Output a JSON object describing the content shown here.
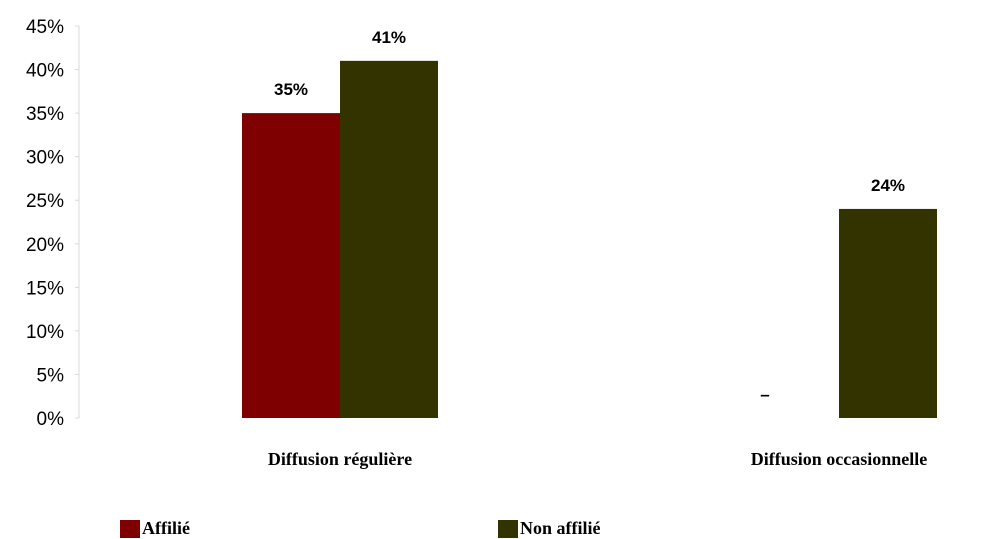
{
  "chart_data": {
    "type": "bar",
    "categories": [
      "Diffusion régulière",
      "Diffusion occasionnelle"
    ],
    "series": [
      {
        "name": "Affilié",
        "values": [
          35,
          0
        ],
        "labels": [
          "35%",
          "–"
        ],
        "color": "#7f0000"
      },
      {
        "name": "Non affilié",
        "values": [
          41,
          24
        ],
        "labels": [
          "41%",
          "24%"
        ],
        "color": "#333300"
      }
    ],
    "ylim": [
      0,
      45
    ],
    "yticks": [
      "0%",
      "5%",
      "10%",
      "15%",
      "20%",
      "25%",
      "30%",
      "35%",
      "40%",
      "45%"
    ],
    "legend_position": "bottom",
    "grid": false
  }
}
